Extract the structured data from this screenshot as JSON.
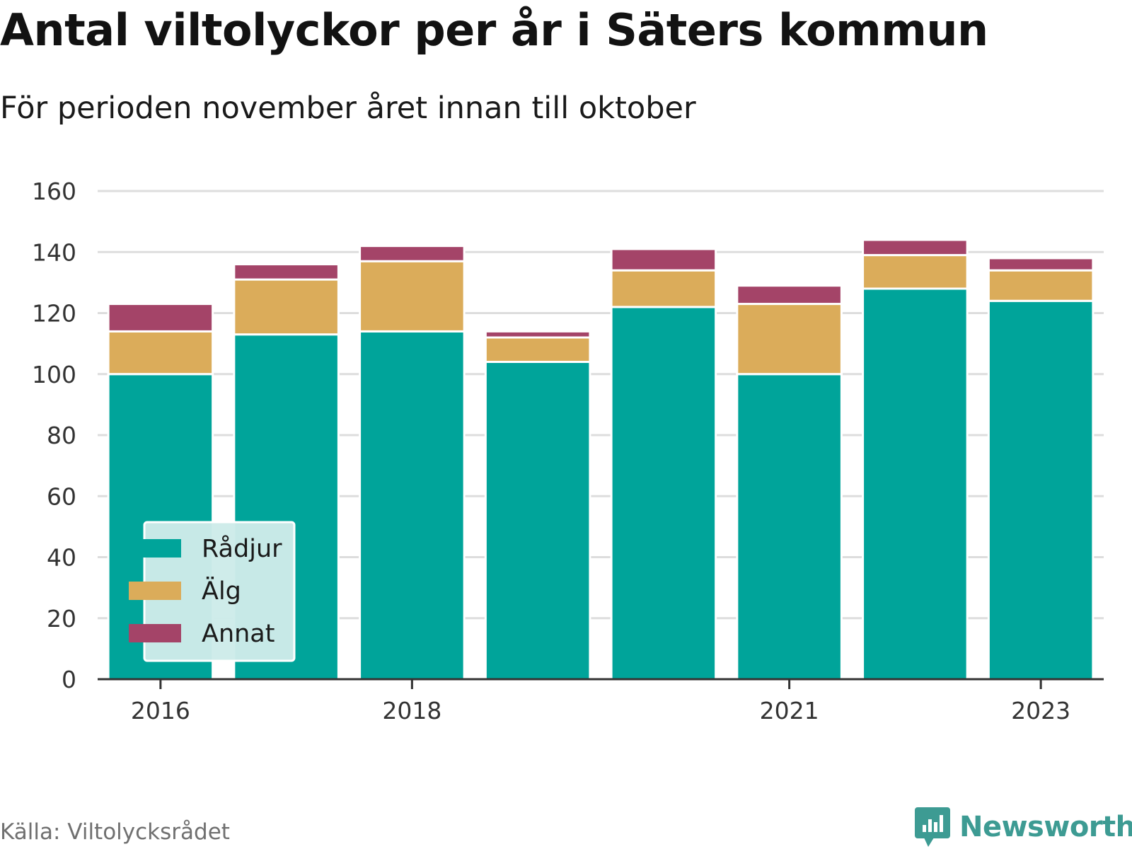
{
  "title": "Antal viltolyckor per år i Säters kommun",
  "subtitle": "För perioden november året innan till oktober",
  "source": "Källa: Viltolycksrådet",
  "brand": "Newsworthy",
  "colors": {
    "radjur": "#00a49a",
    "alg": "#dbac5a",
    "annat": "#a44468",
    "grid": "#dddddd",
    "axis": "#333333",
    "legend_bg": "#cdebe9",
    "brand": "#3d9b93"
  },
  "chart_data": {
    "type": "bar",
    "stacked": true,
    "categories": [
      "2016",
      "2017",
      "2018",
      "2019",
      "2020",
      "2021",
      "2022",
      "2023"
    ],
    "x_tick_labels": [
      "2016",
      "",
      "2018",
      "",
      "",
      "2021",
      "",
      "2023"
    ],
    "series": [
      {
        "name": "Rådjur",
        "values": [
          100,
          113,
          114,
          104,
          122,
          100,
          128,
          124
        ]
      },
      {
        "name": "Älg",
        "values": [
          14,
          18,
          23,
          8,
          12,
          23,
          11,
          10
        ]
      },
      {
        "name": "Annat",
        "values": [
          9,
          5,
          5,
          2,
          7,
          6,
          5,
          4
        ]
      }
    ],
    "ylim": [
      0,
      160
    ],
    "y_ticks": [
      "0",
      "20",
      "40",
      "60",
      "80",
      "100",
      "120",
      "140",
      "160"
    ],
    "grid": true,
    "legend_position": "bottom-left"
  }
}
